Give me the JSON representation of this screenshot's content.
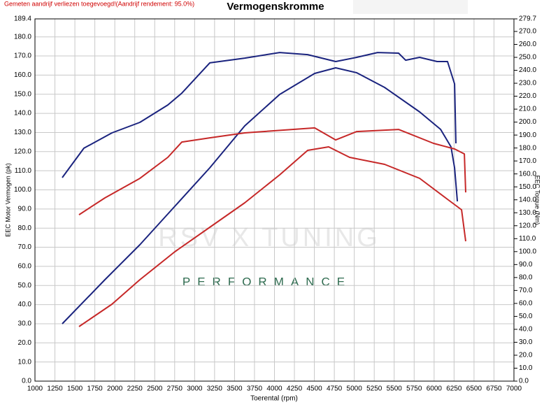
{
  "chart_data": {
    "type": "line",
    "title": "Vermogenskromme",
    "subtitle": "Gemeten aandrijf verliezen toegevoegd!(Aandrijf rendement: 95.0%)",
    "x_label": "Toerental (rpm)",
    "y_label": "EEC Motor Vermogen (pk)",
    "y2_label": "EEC Torque (Nm)",
    "watermark": [
      "RSV X TUNING",
      "PERFORMANCE"
    ],
    "grid": true,
    "xlim": [
      1000,
      7000
    ],
    "xticks": [
      1000,
      1250,
      1500,
      1750,
      2000,
      2250,
      2500,
      2750,
      3000,
      3250,
      3500,
      3750,
      4000,
      4250,
      4500,
      4750,
      5000,
      5250,
      5500,
      5750,
      6000,
      6250,
      6500,
      6750,
      7000
    ],
    "ylim": [
      0,
      189.4
    ],
    "yticks": [
      {
        "value": 0,
        "label": "0.0"
      },
      {
        "value": 10,
        "label": "10.0"
      },
      {
        "value": 20,
        "label": "20.0"
      },
      {
        "value": 30,
        "label": "30.0"
      },
      {
        "value": 40,
        "label": "40.0"
      },
      {
        "value": 50,
        "label": "50.0"
      },
      {
        "value": 60,
        "label": "60.0"
      },
      {
        "value": 70,
        "label": "70.0"
      },
      {
        "value": 80,
        "label": "80.0"
      },
      {
        "value": 90,
        "label": "90.0"
      },
      {
        "value": 100,
        "label": "100.0"
      },
      {
        "value": 110,
        "label": "110.0"
      },
      {
        "value": 120,
        "label": "120.0"
      },
      {
        "value": 130,
        "label": "130.0"
      },
      {
        "value": 140,
        "label": "140.0"
      },
      {
        "value": 150,
        "label": "150.0"
      },
      {
        "value": 160,
        "label": "160.0"
      },
      {
        "value": 170,
        "label": "170.0"
      },
      {
        "value": 180,
        "label": "180.0"
      },
      189.4
    ],
    "y2lim": [
      0,
      279.7
    ],
    "y2ticks": [
      {
        "value": 0,
        "label": "0.0"
      },
      {
        "value": 10,
        "label": "10.0"
      },
      {
        "value": 20,
        "label": "20.0"
      },
      {
        "value": 30,
        "label": "30.0"
      },
      {
        "value": 40,
        "label": "40.0"
      },
      {
        "value": 50,
        "label": "50.0"
      },
      {
        "value": 60,
        "label": "60.0"
      },
      {
        "value": 70,
        "label": "70.0"
      },
      {
        "value": 80,
        "label": "80.0"
      },
      {
        "value": 90,
        "label": "90.0"
      },
      {
        "value": 100,
        "label": "100.0"
      },
      {
        "value": 110,
        "label": "110.0"
      },
      {
        "value": 120,
        "label": "120.0"
      },
      {
        "value": 130,
        "label": "130.0"
      },
      {
        "value": 140,
        "label": "140.0"
      },
      {
        "value": 150,
        "label": "150.0"
      },
      {
        "value": 160,
        "label": "160.0"
      },
      {
        "value": 170,
        "label": "170.0"
      },
      {
        "value": 180,
        "label": "180.0"
      },
      {
        "value": 190,
        "label": "190.0"
      },
      {
        "value": 200,
        "label": "200.0"
      },
      {
        "value": 210,
        "label": "210.0"
      },
      {
        "value": 220,
        "label": "220.0"
      },
      {
        "value": 230,
        "label": "230.0"
      },
      {
        "value": 240,
        "label": "240.0"
      },
      {
        "value": 250,
        "label": "250.0"
      },
      {
        "value": 260,
        "label": "260.0"
      },
      {
        "value": 270,
        "label": "270.0"
      },
      279.7
    ],
    "series": [
      {
        "color": "#1a237e",
        "x": [
          1342,
          1613,
          1964,
          2314,
          2664,
          2840,
          3190,
          3628,
          4066,
          4416,
          4767,
          5030,
          5292,
          5555,
          5643,
          5818,
          6037,
          6168,
          6256,
          6273
        ],
        "values": [
          106.4,
          121.8,
          129.8,
          135.3,
          144.4,
          150.6,
          166.4,
          168.9,
          171.8,
          170.7,
          167.1,
          169.3,
          171.8,
          171.5,
          167.8,
          169.3,
          167.1,
          167.1,
          155.4,
          124.3
        ]
      },
      {
        "color": "#1a237e",
        "axis": "y2",
        "x": [
          1342,
          1876,
          2314,
          2752,
          3190,
          3628,
          4066,
          4504,
          4767,
          5030,
          5380,
          5818,
          6081,
          6212,
          6256,
          6291
        ],
        "values": [
          44.3,
          78.3,
          105.3,
          135,
          164.7,
          197.1,
          221.4,
          237.6,
          241.9,
          238.1,
          226.8,
          207.9,
          194.4,
          180.9,
          164.7,
          138.8
        ]
      },
      {
        "color": "#c62828",
        "x": [
          1552,
          1876,
          2314,
          2664,
          2840,
          3190,
          3628,
          4504,
          4767,
          5030,
          5555,
          5993,
          6256,
          6379,
          6396
        ],
        "values": [
          87,
          95.8,
          106,
          117,
          125,
          127.2,
          129.8,
          132.4,
          126.1,
          130.5,
          131.6,
          124.3,
          121.4,
          118.8,
          98.7
        ]
      },
      {
        "color": "#c62828",
        "axis": "y2",
        "x": [
          1552,
          1964,
          2314,
          2752,
          3190,
          3628,
          4066,
          4416,
          4679,
          4942,
          5380,
          5818,
          6168,
          6344,
          6396
        ],
        "values": [
          42.1,
          59.4,
          78.3,
          99.9,
          118.8,
          137.7,
          159.3,
          178.2,
          180.9,
          172.8,
          167.4,
          156.6,
          140.4,
          132.3,
          108
        ]
      }
    ]
  }
}
